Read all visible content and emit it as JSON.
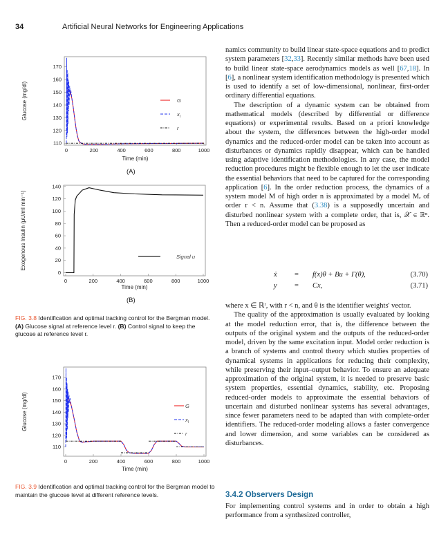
{
  "header": {
    "page_number": "34",
    "book_title": "Artificial Neural Networks for Engineering Applications"
  },
  "text": {
    "p1": [
      "namics community to build linear state-space equations and to predict system parameters [",
      "32",
      ",",
      "33",
      "]. Recently similar methods have been used to build linear state-space aerodynamics models as well [",
      "67",
      ",",
      "18",
      "]. In [",
      "6",
      "], a nonlinear system identification methodology is presented which is used to identify a set of low-dimensional, nonlinear, first-order ordinary differential equations."
    ],
    "p2": [
      "The description of a dynamic system can be obtained from mathematical models (described by differential or difference equations) or experimental results. Based on a priori knowledge about the system, the differences between the high-order model dynamics and the reduced-order model can be taken into account as disturbances or dynamics rapidly disappear, which can be handled using adaptive identification methodologies. In any case, the model reduction procedures might be flexible enough to let the user indicate the essential behaviors that need to be captured for the corresponding application [",
      "6",
      "]. In the order reduction process, the dynamics of a system model M of high order n is approximated by a model Mᵣ of order r < n. Assume that (",
      "3.38",
      ") is a supposedly uncertain and disturbed nonlinear system with a complete order, that is, 𝒳 ∈ ℝⁿ. Then a reduced-order model can be proposed as"
    ],
    "eq1": {
      "lhs": "ẋ",
      "op": "=",
      "rhs": "f(x)θ + Bu + Γ(θ),",
      "num": "(3.70)"
    },
    "eq2": {
      "lhs": "y",
      "op": "=",
      "rhs": "Cx,",
      "num": "(3.71)"
    },
    "p3": "where x ∈ ℝʳ, with r < n, and θ is the identifier weights' vector.",
    "p4": "The quality of the approximation is usually evaluated by looking at the model reduction error, that is, the difference between the outputs of the original system and the outputs of the reduced-order model, driven by the same excitation input. Model order reduction is a branch of systems and control theory which studies properties of dynamical systems in applications for reducing their complexity, while preserving their input–output behavior. To ensure an adequate approximation of the original system, it is needed to preserve basic system properties, essential dynamics, stability, etc. Proposing reduced-order models to approximate the essential behaviors of uncertain and disturbed nonlinear systems has several advantages, since fewer parameters need to be adapted than with complete-order identifiers. The reduced-order modeling allows a faster convergence and lower dimension, and some variables can be considered as disturbances.",
    "heading": "3.4.2 Observers Design",
    "p5": "For implementing control systems and in order to obtain a high performance from a synthesized controller,"
  },
  "captions": {
    "fig38": {
      "label": "FIG. 3.8",
      "text": " Identification and optimal tracking control for the Bergman model. ",
      "a": "(A)",
      "a_text": " Glucose signal at reference level r. ",
      "b": "(B)",
      "b_text": " Control signal to keep the glucose at reference level r."
    },
    "fig39": {
      "label": "FIG. 3.9",
      "text": " Identification and optimal tracking control for the Bergman model to maintain the glucose level at different reference levels."
    },
    "sub_a": "(A)",
    "sub_b": "(B)"
  },
  "colors": {
    "G": "#ee2222",
    "x_I": "#2233ee",
    "r": "#111111",
    "u": "#111111",
    "legend_u": "#777777",
    "fig_label": "#e8552f",
    "heading": "#1f6b98",
    "cite": "#2a8ac0"
  },
  "chart_data": [
    {
      "type": "line",
      "xlabel": "Time (min)",
      "ylabel": "Glucose (mg/dl)",
      "xlim": [
        0,
        1000
      ],
      "ylim": [
        108.5,
        178
      ],
      "xticks": [
        0,
        200,
        400,
        600,
        800,
        1000
      ],
      "yticks": [
        110,
        120,
        130,
        140,
        150,
        160,
        170
      ],
      "legend": "right",
      "series": [
        {
          "name": "G",
          "style": "solid",
          "color": "#ee2222",
          "points": [
            [
              0,
              150
            ],
            [
              10,
              152
            ],
            [
              20,
              151
            ],
            [
              30,
              150
            ],
            [
              40,
              145
            ],
            [
              50,
              138
            ],
            [
              60,
              130
            ],
            [
              70,
              122
            ],
            [
              80,
              116
            ],
            [
              90,
              112
            ],
            [
              100,
              110.5
            ],
            [
              120,
              109.5
            ],
            [
              150,
              109
            ],
            [
              200,
              109
            ],
            [
              300,
              109.3
            ],
            [
              400,
              109.6
            ],
            [
              600,
              109.8
            ],
            [
              1000,
              110
            ]
          ]
        },
        {
          "name": "x_I",
          "style": "dashed",
          "color": "#2233ee",
          "points": [
            [
              0,
              110
            ],
            [
              2,
              177
            ],
            [
              4,
              115
            ],
            [
              6,
              168
            ],
            [
              8,
              118
            ],
            [
              10,
              165
            ],
            [
              12,
              125
            ],
            [
              14,
              160
            ],
            [
              16,
              135
            ],
            [
              18,
              158
            ],
            [
              20,
              140
            ],
            [
              24,
              155
            ],
            [
              28,
              148
            ],
            [
              32,
              152
            ],
            [
              40,
              145
            ],
            [
              50,
              138
            ],
            [
              60,
              130
            ],
            [
              70,
              122
            ],
            [
              80,
              116
            ],
            [
              90,
              112
            ],
            [
              100,
              110.5
            ],
            [
              120,
              109.5
            ],
            [
              150,
              109
            ],
            [
              200,
              109
            ],
            [
              300,
              109.3
            ],
            [
              400,
              109.6
            ],
            [
              600,
              109.8
            ],
            [
              1000,
              110
            ]
          ]
        },
        {
          "name": "r",
          "style": "dashdot",
          "color": "#111111",
          "points": [
            [
              0,
              110
            ],
            [
              1000,
              110
            ]
          ]
        }
      ]
    },
    {
      "type": "line",
      "xlabel": "Time (min)",
      "ylabel": "Exogenous Insulin (μU/ml min⁻¹)",
      "xlim": [
        0,
        1000
      ],
      "ylim": [
        -5,
        142
      ],
      "xticks": [
        0,
        200,
        400,
        600,
        800,
        1000
      ],
      "yticks": [
        0,
        20,
        40,
        60,
        80,
        100,
        120,
        140
      ],
      "legend": "lower-right",
      "series": [
        {
          "name": "Signal u",
          "style": "solid",
          "color": "#111111",
          "points": [
            [
              0,
              0
            ],
            [
              60,
              0
            ],
            [
              62,
              95
            ],
            [
              70,
              118
            ],
            [
              80,
              124
            ],
            [
              120,
              134
            ],
            [
              170,
              138
            ],
            [
              250,
              134
            ],
            [
              350,
              130
            ],
            [
              500,
              128
            ],
            [
              700,
              126.5
            ],
            [
              1000,
              126
            ]
          ]
        }
      ]
    },
    {
      "type": "line",
      "xlabel": "Time (min)",
      "ylabel": "Glucose (mg/dl)",
      "xlim": [
        0,
        1000
      ],
      "ylim": [
        102,
        179
      ],
      "xticks": [
        0,
        200,
        400,
        600,
        800,
        1000
      ],
      "yticks": [
        110,
        120,
        130,
        140,
        150,
        160,
        170
      ],
      "legend": "right",
      "series": [
        {
          "name": "G",
          "style": "solid",
          "color": "#ee2222",
          "points": [
            [
              0,
              150
            ],
            [
              20,
              152
            ],
            [
              40,
              146
            ],
            [
              60,
              135
            ],
            [
              80,
              123
            ],
            [
              100,
              115
            ],
            [
              120,
              114
            ],
            [
              150,
              114.5
            ],
            [
              200,
              115
            ],
            [
              400,
              115
            ],
            [
              420,
              112
            ],
            [
              440,
              107
            ],
            [
              460,
              105
            ],
            [
              500,
              104.5
            ],
            [
              600,
              104.5
            ],
            [
              620,
              107
            ],
            [
              640,
              112
            ],
            [
              660,
              115
            ],
            [
              800,
              115
            ],
            [
              820,
              113
            ],
            [
              840,
              110.5
            ],
            [
              860,
              110
            ],
            [
              1000,
              110
            ]
          ]
        },
        {
          "name": "x_I",
          "style": "dashed",
          "color": "#2233ee",
          "points": [
            [
              0,
              110
            ],
            [
              2,
              178
            ],
            [
              4,
              115
            ],
            [
              6,
              170
            ],
            [
              8,
              118
            ],
            [
              10,
              165
            ],
            [
              12,
              125
            ],
            [
              14,
              160
            ],
            [
              16,
              135
            ],
            [
              18,
              158
            ],
            [
              20,
              140
            ],
            [
              24,
              155
            ],
            [
              28,
              148
            ],
            [
              32,
              152
            ],
            [
              40,
              146
            ],
            [
              60,
              135
            ],
            [
              80,
              123
            ],
            [
              100,
              115
            ],
            [
              120,
              114
            ],
            [
              150,
              114.5
            ],
            [
              200,
              115
            ],
            [
              400,
              115
            ],
            [
              420,
              112
            ],
            [
              440,
              107
            ],
            [
              460,
              105
            ],
            [
              500,
              104.5
            ],
            [
              600,
              104.5
            ],
            [
              620,
              107
            ],
            [
              640,
              112
            ],
            [
              660,
              115
            ],
            [
              800,
              115
            ],
            [
              820,
              113
            ],
            [
              840,
              110.5
            ],
            [
              860,
              110
            ],
            [
              1000,
              110
            ]
          ]
        },
        {
          "name": "r",
          "style": "dashdot",
          "color": "#111111",
          "segments": [
            [
              [
                0,
                115
              ],
              [
                400,
                115
              ]
            ],
            [
              [
                400,
                105
              ],
              [
                600,
                105
              ]
            ],
            [
              [
                600,
                115
              ],
              [
                800,
                115
              ]
            ],
            [
              [
                800,
                110
              ],
              [
                1000,
                110
              ]
            ]
          ]
        }
      ]
    }
  ]
}
